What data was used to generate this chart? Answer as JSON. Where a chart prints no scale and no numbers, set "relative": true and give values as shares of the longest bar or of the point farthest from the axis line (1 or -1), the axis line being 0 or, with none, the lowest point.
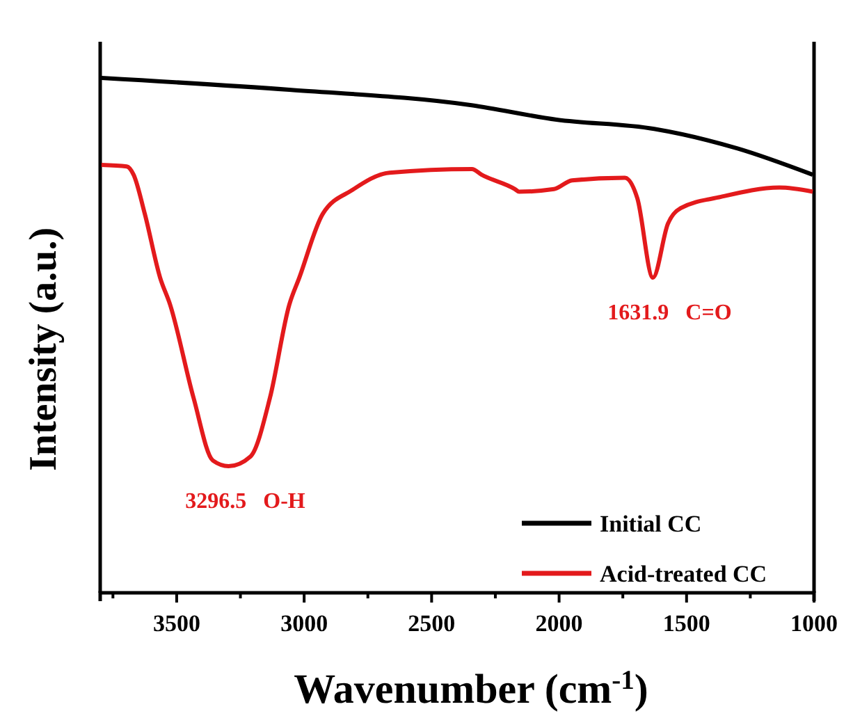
{
  "chart_data": {
    "type": "line",
    "xlabel": "Wavenumber (cm$^{-1}$)",
    "ylabel": "Intensity (a.u.)",
    "relative": true,
    "tick_labels": "x",
    "legend": "bottom right",
    "grid": false,
    "marker": "none",
    "line_style": "solid",
    "xlim": [
      3800,
      1000
    ],
    "xticks": [
      {
        "value": 3750,
        "label": null
      },
      3500,
      {
        "value": 3250,
        "label": null
      },
      3000,
      {
        "value": 2750,
        "label": null
      },
      2500,
      {
        "value": 2250,
        "label": null
      },
      2000,
      {
        "value": 1750,
        "label": null
      },
      1500,
      {
        "value": 1250,
        "label": null
      },
      1000
    ],
    "series": [
      {
        "name": "Initial CC",
        "color": "#000000",
        "x": [
          3795,
          3058,
          2343,
          2010,
          1627,
          1300,
          1005
        ],
        "values": [
          1.0,
          0.977,
          0.947,
          0.919,
          0.901,
          0.863,
          0.812
        ]
      },
      {
        "name": "Acid-treated CC",
        "color": "#e31a1c",
        "x": [
          3795,
          3696,
          3669,
          3625,
          3565,
          3526,
          3434,
          3358,
          3296.5,
          3210,
          3134,
          3058,
          3019,
          2927,
          2812,
          2665,
          2342,
          2304,
          2173,
          2157,
          2020,
          1949,
          1742,
          1693,
          1631.9,
          1573,
          1523,
          1365,
          1136,
          1005
        ],
        "values": [
          0.831,
          0.828,
          0.812,
          0.736,
          0.612,
          0.56,
          0.379,
          0.257,
          0.246,
          0.265,
          0.379,
          0.56,
          0.612,
          0.736,
          0.782,
          0.816,
          0.823,
          0.812,
          0.784,
          0.779,
          0.784,
          0.801,
          0.806,
          0.766,
          0.612,
          0.717,
          0.747,
          0.769,
          0.787,
          0.779
        ]
      }
    ],
    "annotations": [
      {
        "text": "3296.5   O-H",
        "x": 3296.5,
        "y": 0.246
      },
      {
        "text": "1631.9   C=O",
        "x": 1631.9,
        "y": 0.612
      }
    ]
  }
}
